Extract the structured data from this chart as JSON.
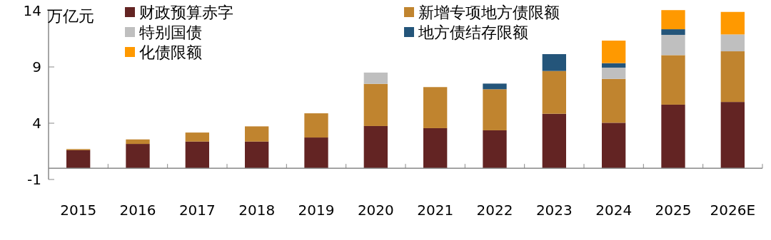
{
  "chart_data": {
    "type": "bar",
    "stacked": true,
    "ylabel": "万亿元",
    "categories": [
      "2015",
      "2016",
      "2017",
      "2018",
      "2019",
      "2020",
      "2021",
      "2022",
      "2023",
      "2024",
      "2025",
      "2026E"
    ],
    "series": [
      {
        "name": "财政预算赤字",
        "color": "#632423",
        "values": [
          1.6,
          2.16,
          2.37,
          2.37,
          2.73,
          3.75,
          3.56,
          3.37,
          4.84,
          4.04,
          5.65,
          5.89
        ]
      },
      {
        "name": "新增专项地方债限额",
        "color": "#c0842f",
        "values": [
          0.1,
          0.4,
          0.8,
          1.35,
          2.15,
          3.75,
          3.65,
          3.65,
          3.8,
          3.9,
          4.4,
          4.5
        ]
      },
      {
        "name": "特别国债",
        "color": "#bfbfbf",
        "values": [
          null,
          null,
          null,
          null,
          null,
          1.0,
          null,
          null,
          null,
          1.0,
          1.8,
          1.5
        ]
      },
      {
        "name": "地方债结存限额",
        "color": "#24557a",
        "values": [
          null,
          null,
          null,
          null,
          null,
          null,
          null,
          0.5,
          1.5,
          0.4,
          0.5,
          null
        ]
      },
      {
        "name": "化债限额",
        "color": "#ff9900",
        "values": [
          null,
          null,
          null,
          null,
          null,
          null,
          null,
          null,
          null,
          2.0,
          1.7,
          2.0
        ]
      }
    ],
    "ylim": [
      -1,
      14
    ],
    "yticks": [
      -1,
      4,
      9,
      14
    ],
    "grid": false,
    "legend": "top left"
  }
}
